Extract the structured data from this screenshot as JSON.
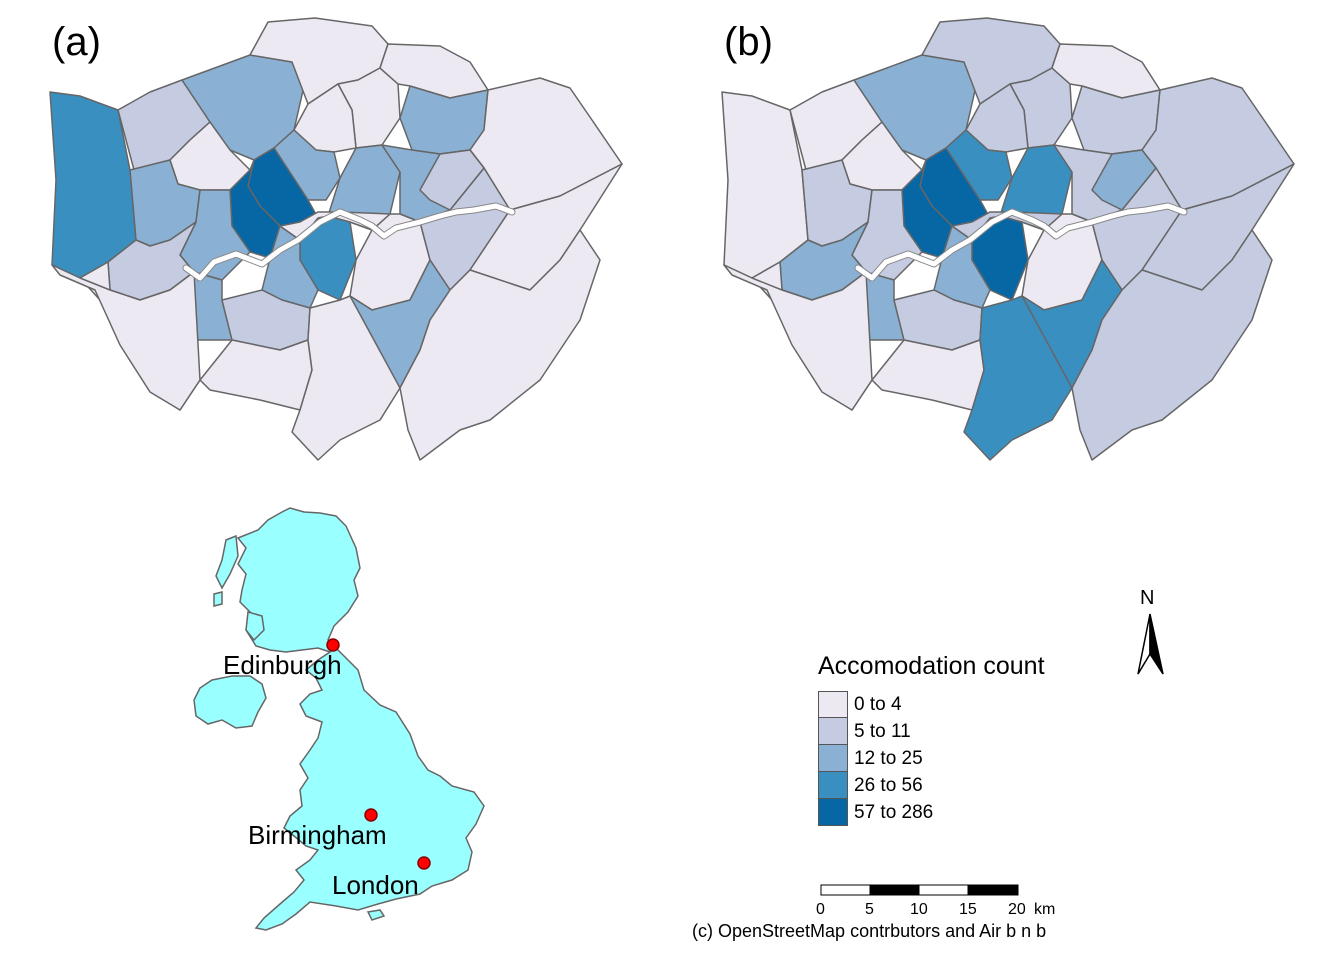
{
  "panels": {
    "a": {
      "label": "(a)"
    },
    "b": {
      "label": "(b)"
    }
  },
  "legend": {
    "title": "Accomodation count",
    "classes": [
      {
        "label": "0 to 4",
        "color": "#ede9f3"
      },
      {
        "label": "5 to 11",
        "color": "#c5cbe1"
      },
      {
        "label": "12 to 25",
        "color": "#8ab0d3"
      },
      {
        "label": "26 to 56",
        "color": "#3a8fc1"
      },
      {
        "label": "57 to 286",
        "color": "#0767a5"
      }
    ]
  },
  "map_a_classes": [
    3,
    1,
    2,
    0,
    0,
    0,
    2,
    0,
    0,
    0,
    2,
    2,
    4,
    4,
    2,
    2,
    2,
    1,
    3,
    2,
    0,
    1,
    0,
    0,
    2,
    1,
    0,
    0,
    2,
    0,
    0,
    0,
    1
  ],
  "map_b_classes": [
    0,
    0,
    2,
    1,
    1,
    0,
    1,
    1,
    1,
    0,
    1,
    3,
    4,
    4,
    3,
    1,
    1,
    2,
    4,
    2,
    0,
    1,
    1,
    0,
    2,
    1,
    0,
    3,
    3,
    1,
    0,
    1,
    2
  ],
  "inset": {
    "land_color": "#99ffff",
    "marker_color": "#ff0000",
    "cities": [
      {
        "name": "Edinburgh"
      },
      {
        "name": "Birmingham"
      },
      {
        "name": "London"
      }
    ]
  },
  "north_arrow": {
    "label": "N"
  },
  "scale_bar": {
    "ticks": [
      "0",
      "5",
      "10",
      "15",
      "20"
    ],
    "unit": "km"
  },
  "credit": "(c) OpenStreetMap contrbutors and Air b n b",
  "colors": {
    "boundary": "#666666",
    "thames": "#ffffff"
  }
}
